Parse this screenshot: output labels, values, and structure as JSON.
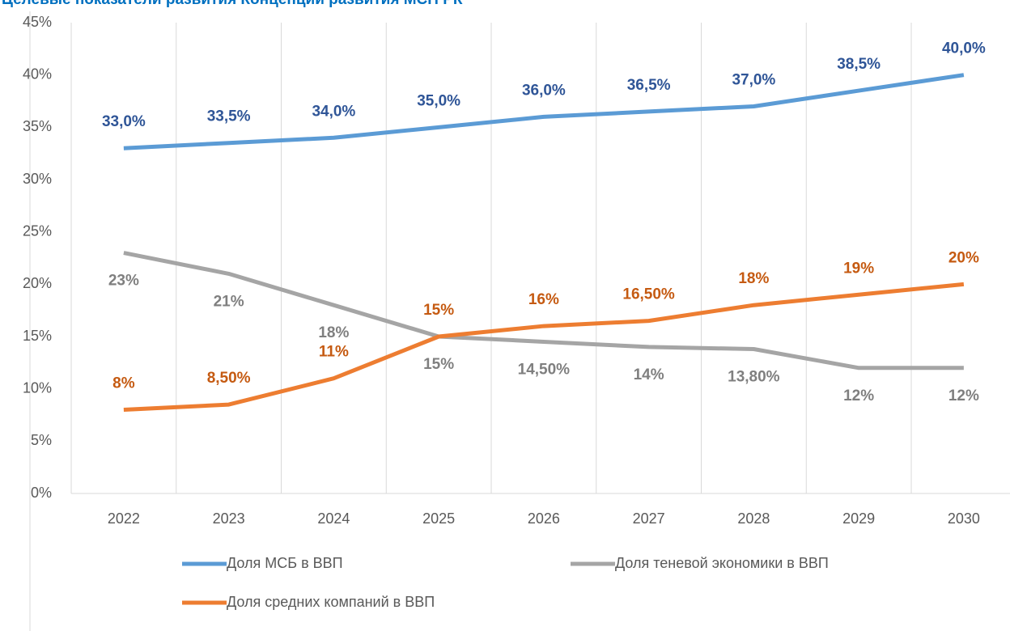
{
  "chart_data": {
    "type": "line",
    "title": "Целевые показатели развития Концепции развития МСП РК",
    "categories": [
      "2022",
      "2023",
      "2024",
      "2025",
      "2026",
      "2027",
      "2028",
      "2029",
      "2030"
    ],
    "series": [
      {
        "name": "Доля МСБ в ВВП",
        "color": "#5b9bd5",
        "label_color": "#2f5597",
        "label_position": "above",
        "values": [
          33,
          33.5,
          34,
          35,
          36,
          36.5,
          37,
          38.5,
          40
        ],
        "value_labels": [
          "33,0%",
          "33,5%",
          "34,0%",
          "35,0%",
          "36,0%",
          "36,5%",
          "37,0%",
          "38,5%",
          "40,0%"
        ]
      },
      {
        "name": "Доля теневой экономики в ВВП",
        "color": "#a5a5a5",
        "label_color": "#7f7f7f",
        "label_position": "below",
        "values": [
          23,
          21,
          18,
          15,
          14.5,
          14,
          13.8,
          12,
          12
        ],
        "value_labels": [
          "23%",
          "21%",
          "18%",
          "15%",
          "14,50%",
          "14%",
          "13,80%",
          "12%",
          "12%"
        ]
      },
      {
        "name": "Доля средних компаний в ВВП",
        "color": "#ed7d31",
        "label_color": "#c55a11",
        "label_position": "above",
        "values": [
          8,
          8.5,
          11,
          15,
          16,
          16.5,
          18,
          19,
          20
        ],
        "value_labels": [
          "8%",
          "8,50%",
          "11%",
          "15%",
          "16%",
          "16,50%",
          "18%",
          "19%",
          "20%"
        ]
      }
    ],
    "ylim": [
      0,
      45
    ],
    "yticks": [
      {
        "value": 0,
        "label": "0%"
      },
      {
        "value": 5,
        "label": "5%"
      },
      {
        "value": 10,
        "label": "10%"
      },
      {
        "value": 15,
        "label": "15%"
      },
      {
        "value": 20,
        "label": "20%"
      },
      {
        "value": 25,
        "label": "25%"
      },
      {
        "value": 30,
        "label": "30%"
      },
      {
        "value": 35,
        "label": "35%"
      },
      {
        "value": 40,
        "label": "40%"
      },
      {
        "value": 45,
        "label": "45%"
      }
    ],
    "grid": "vertical"
  }
}
